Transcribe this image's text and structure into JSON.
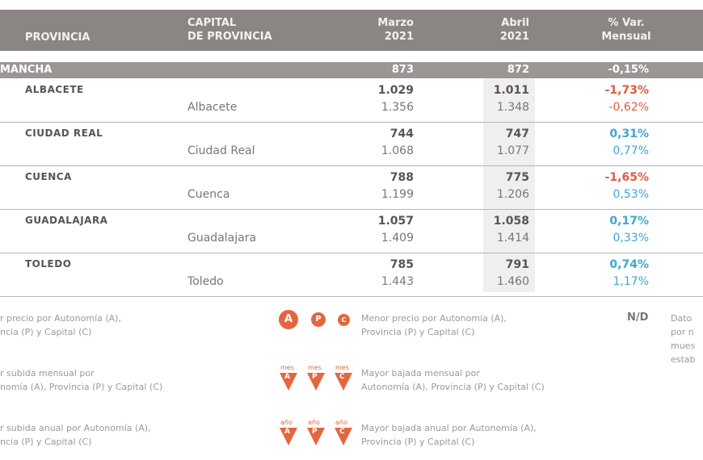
{
  "header": {
    "provincia": "PROVINCIA",
    "capital_1": "CAPITAL",
    "capital_2": "DE PROVINCIA",
    "marzo_1": "Marzo",
    "marzo_2": "2021",
    "abril_1": "Abril",
    "abril_2": "2021",
    "var_1": "% Var.",
    "var_2": "Mensual"
  },
  "region": {
    "name": "MANCHA",
    "marzo": "873",
    "abril": "872",
    "var": "-0,15%"
  },
  "rows": [
    {
      "provincia": "ALBACETE",
      "capital": "Albacete",
      "marzo_p": "1.029",
      "abril_p": "1.011",
      "var_p": "-1,73%",
      "marzo_c": "1.356",
      "abril_c": "1.348",
      "var_c": "-0,62%"
    },
    {
      "provincia": "CIUDAD REAL",
      "capital": "Ciudad Real",
      "marzo_p": "744",
      "abril_p": "747",
      "var_p": "0,31%",
      "marzo_c": "1.068",
      "abril_c": "1.077",
      "var_c": "0,77%"
    },
    {
      "provincia": "CUENCA",
      "capital": "Cuenca",
      "marzo_p": "788",
      "abril_p": "775",
      "var_p": "-1,65%",
      "marzo_c": "1.199",
      "abril_c": "1.206",
      "var_c": "0,53%"
    },
    {
      "provincia": "GUADALAJARA",
      "capital": "Guadalajara",
      "marzo_p": "1.057",
      "abril_p": "1.058",
      "var_p": "0,17%",
      "marzo_c": "1.409",
      "abril_c": "1.414",
      "var_c": "0,33%"
    },
    {
      "provincia": "TOLEDO",
      "capital": "Toledo",
      "marzo_p": "785",
      "abril_p": "791",
      "var_p": "0,74%",
      "marzo_c": "1.443",
      "abril_c": "1.460",
      "var_c": "1,17%"
    }
  ],
  "legend": {
    "left": [
      {
        "l1": "r precio por Autonomía (A),",
        "l2": "ncia (P) y Capital (C)"
      },
      {
        "l1": "r subida mensual por",
        "l2": "nomía (A), Provincia (P) y Capital (C)"
      },
      {
        "l1": "r subida anual por Autonomía (A),",
        "l2": "ncia (P) y Capital (C)"
      }
    ],
    "middle": [
      {
        "l1": "Menor precio por Autonomía (A),",
        "l2": "Provincia (P) y Capital (C)"
      },
      {
        "l1": "Mayor bajada mensual por",
        "l2": "Autonomía (A), Provincia (P) y Capital (C)"
      },
      {
        "l1": "Mayor bajada anual por Autonomía (A),",
        "l2": "Provincia (P) y Capital (C)"
      }
    ],
    "letters": [
      "A",
      "P",
      "C"
    ],
    "mes": "mes",
    "anio": "año",
    "nd": "N/D",
    "nd_text": [
      "Dato",
      "por n",
      "mues",
      "estab"
    ]
  },
  "colors": {
    "header": "#8b8684",
    "negative": "#e0593f",
    "positive": "#3ea7cf",
    "accent": "#e4663f"
  }
}
